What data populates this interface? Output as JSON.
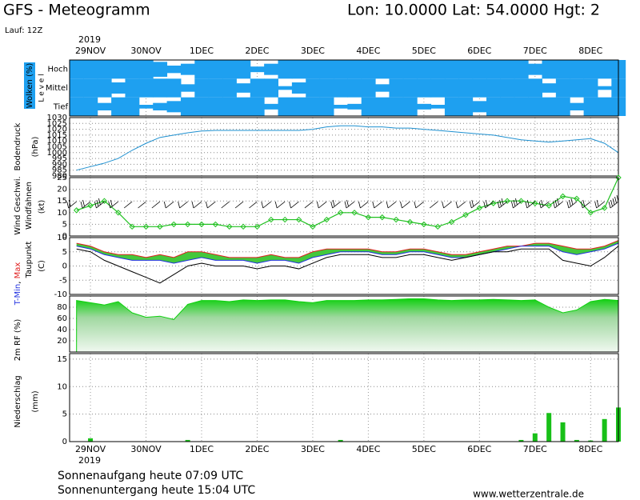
{
  "header": {
    "title": "GFS - Meteogramm",
    "location": "Lon: 10.0000  Lat: 54.0000  Hgt: 2",
    "run": "Lauf: 12Z"
  },
  "time_axis": {
    "year": "2019",
    "xlim": [
      -9,
      228
    ],
    "xticks": [
      {
        "value": 0,
        "label": "29NOV"
      },
      {
        "value": 24,
        "label": "30NOV"
      },
      {
        "value": 48,
        "label": "1DEC"
      },
      {
        "value": 72,
        "label": "2DEC"
      },
      {
        "value": 96,
        "label": "3DEC"
      },
      {
        "value": 120,
        "label": "4DEC"
      },
      {
        "value": 144,
        "label": "5DEC"
      },
      {
        "value": 168,
        "label": "6DEC"
      },
      {
        "value": 192,
        "label": "7DEC"
      },
      {
        "value": 216,
        "label": "8DEC"
      }
    ],
    "x": [
      -6,
      0,
      6,
      12,
      18,
      24,
      30,
      36,
      42,
      48,
      54,
      60,
      66,
      72,
      78,
      84,
      90,
      96,
      102,
      108,
      114,
      120,
      126,
      132,
      138,
      144,
      150,
      156,
      162,
      168,
      174,
      180,
      186,
      192,
      198,
      204,
      210,
      216,
      222,
      228
    ]
  },
  "chart_data": [
    {
      "type": "cloud_cover",
      "y_label": "Wolken (%)",
      "level_label": "L e v e l",
      "series": [
        {
          "name": "Hoch",
          "color": "#1ea0f0",
          "values": [
            100,
            100,
            100,
            100,
            100,
            100,
            80,
            40,
            60,
            100,
            100,
            100,
            100,
            30,
            60,
            100,
            100,
            100,
            100,
            100,
            100,
            100,
            100,
            100,
            100,
            100,
            100,
            100,
            100,
            100,
            100,
            100,
            100,
            60,
            100,
            100,
            100,
            100,
            100,
            100
          ]
        },
        {
          "name": "Mittel",
          "color": "#1ea0f0",
          "values": [
            100,
            100,
            100,
            60,
            100,
            100,
            100,
            100,
            40,
            100,
            100,
            100,
            50,
            100,
            100,
            20,
            60,
            100,
            100,
            100,
            100,
            100,
            40,
            100,
            100,
            100,
            100,
            100,
            100,
            100,
            100,
            100,
            100,
            100,
            50,
            100,
            100,
            100,
            20,
            100
          ]
        },
        {
          "name": "Tief",
          "color": "#1ea0f0",
          "values": [
            100,
            100,
            40,
            100,
            100,
            20,
            40,
            60,
            100,
            100,
            100,
            100,
            100,
            100,
            30,
            100,
            100,
            100,
            100,
            20,
            30,
            100,
            100,
            100,
            100,
            30,
            20,
            100,
            100,
            60,
            100,
            100,
            100,
            100,
            100,
            100,
            40,
            100,
            100,
            100
          ]
        }
      ]
    },
    {
      "type": "line",
      "y_label": "Bodendruck",
      "unit_label": "(hPa)",
      "color": "#1e90d0",
      "grid": true,
      "ylim": [
        980,
        1030
      ],
      "yticks": [
        980,
        985,
        990,
        995,
        1000,
        1005,
        1010,
        1015,
        1020,
        1025,
        1030
      ],
      "values": [
        985,
        988,
        991,
        995,
        1002,
        1008,
        1013,
        1015,
        1017,
        1018.5,
        1019,
        1019,
        1019,
        1019,
        1019,
        1019,
        1019,
        1020,
        1022,
        1023,
        1023,
        1022,
        1022,
        1021,
        1021,
        1020,
        1019,
        1018,
        1017,
        1016,
        1015,
        1013,
        1011,
        1010,
        1009,
        1010,
        1011,
        1012,
        1008,
        1000
      ]
    },
    {
      "type": "wind",
      "y_label": "Wind Geschwi.",
      "y_label2": "Windfahnen",
      "unit_label": "(kt)",
      "color": "#20c020",
      "grid": true,
      "ylim": [
        0,
        25
      ],
      "yticks": [
        0,
        5,
        10,
        15,
        20,
        25
      ],
      "values": [
        11,
        13,
        15,
        10,
        4,
        4,
        4,
        5,
        5,
        5,
        5,
        4,
        4,
        4,
        7,
        7,
        7,
        4,
        7,
        10,
        10,
        8,
        8,
        7,
        6,
        5,
        4,
        6,
        9,
        12,
        14,
        15,
        15,
        14,
        13,
        17,
        16,
        10,
        12,
        25
      ]
    },
    {
      "type": "temperature",
      "y_label_parts": [
        "T-Min",
        ", ",
        "Max"
      ],
      "y_label2": "Taupunkt",
      "unit_label": "(C)",
      "fill": "#44c83c",
      "ylim": [
        -10,
        10
      ],
      "yticks": [
        -10,
        -5,
        0,
        5,
        10
      ],
      "series": [
        {
          "name": "Max",
          "color": "#e02020",
          "values": [
            8,
            7,
            5,
            4,
            4,
            3,
            4,
            3,
            5,
            5,
            4,
            3,
            3,
            3,
            4,
            3,
            3,
            5,
            6,
            6,
            6,
            6,
            5,
            5,
            6,
            6,
            5,
            4,
            4,
            5,
            6,
            7,
            7,
            8,
            8,
            7,
            6,
            6,
            7,
            9
          ]
        },
        {
          "name": "T-Min",
          "color": "#2030e0",
          "values": [
            7,
            6,
            4,
            3,
            2,
            2,
            2,
            1,
            2,
            3,
            2,
            2,
            2,
            1,
            2,
            2,
            1,
            3,
            4,
            5,
            5,
            5,
            4,
            4,
            5,
            5,
            4,
            3,
            3,
            4,
            5,
            6,
            7,
            7,
            7,
            5,
            4,
            5,
            6,
            8
          ]
        },
        {
          "name": "Taupunkt",
          "color": "#000000",
          "values": [
            6,
            5,
            2,
            0,
            -2,
            -4,
            -6,
            -3,
            0,
            1,
            0,
            0,
            0,
            -1,
            0,
            0,
            -1,
            1,
            3,
            4,
            4,
            4,
            3,
            3,
            4,
            4,
            3,
            2,
            3,
            4,
            5,
            5,
            6,
            6,
            6,
            2,
            1,
            0,
            3,
            7
          ]
        }
      ]
    },
    {
      "type": "area",
      "y_label": "2m RF (%)",
      "color": "#10d010",
      "ylim": [
        0,
        100
      ],
      "yticks": [
        20,
        40,
        60,
        80
      ],
      "values": [
        92,
        88,
        84,
        90,
        70,
        62,
        64,
        58,
        85,
        92,
        92,
        90,
        93,
        92,
        93,
        93,
        90,
        88,
        92,
        92,
        92,
        93,
        93,
        94,
        95,
        95,
        93,
        92,
        93,
        93,
        94,
        93,
        92,
        93,
        80,
        70,
        75,
        90,
        94,
        92
      ]
    },
    {
      "type": "bar",
      "y_label": "Niederschlag",
      "unit_label": "(mm)",
      "color": "#18c018",
      "ylim": [
        0,
        16
      ],
      "yticks": [
        0,
        5,
        10,
        15
      ],
      "values": [
        0,
        0.6,
        0,
        0,
        0,
        0,
        0,
        0,
        0.3,
        0,
        0,
        0,
        0,
        0,
        0,
        0,
        0,
        0,
        0,
        0.3,
        0,
        0,
        0,
        0,
        0,
        0,
        0,
        0,
        0,
        0,
        0,
        0,
        0.3,
        1.5,
        5.2,
        3.5,
        0.3,
        0.2,
        4.1,
        6.2
      ]
    }
  ],
  "footer": {
    "sunrise": "Sonnenaufgang heute 07:09 UTC",
    "sunset": "Sonnenuntergang heute 15:04 UTC",
    "source": "www.wetterzentrale.de"
  }
}
